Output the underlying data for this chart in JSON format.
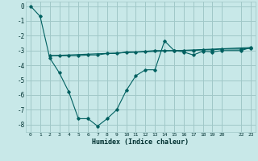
{
  "title": "",
  "xlabel": "Humidex (Indice chaleur)",
  "background_color": "#c8e8e8",
  "grid_color": "#a0c8c8",
  "line_color": "#006060",
  "xlim": [
    -0.5,
    23.5
  ],
  "ylim": [
    -8.5,
    0.3
  ],
  "x_ticks": [
    0,
    1,
    2,
    3,
    4,
    5,
    6,
    7,
    8,
    9,
    10,
    11,
    12,
    13,
    14,
    15,
    16,
    17,
    18,
    19,
    20,
    22,
    23
  ],
  "y_ticks": [
    0,
    -1,
    -2,
    -3,
    -4,
    -5,
    -6,
    -7,
    -8
  ],
  "line1_x": [
    0,
    1,
    2,
    3,
    4,
    5,
    6,
    7,
    8,
    9,
    10,
    11,
    12,
    13,
    14,
    15,
    16,
    17,
    18,
    19,
    20,
    22,
    23
  ],
  "line1_y": [
    0.0,
    -0.7,
    -3.5,
    -4.5,
    -5.8,
    -7.6,
    -7.6,
    -8.1,
    -7.6,
    -7.0,
    -5.7,
    -4.7,
    -4.3,
    -4.3,
    -2.35,
    -3.0,
    -3.1,
    -3.3,
    -3.05,
    -3.1,
    -3.0,
    -3.0,
    -2.8
  ],
  "line2_x": [
    2,
    3,
    4,
    5,
    6,
    7,
    8,
    9,
    10,
    11,
    12,
    13,
    14,
    15,
    16,
    17,
    18,
    19,
    20,
    22,
    23
  ],
  "line2_y": [
    -3.35,
    -3.35,
    -3.35,
    -3.35,
    -3.3,
    -3.3,
    -3.2,
    -3.2,
    -3.1,
    -3.1,
    -3.05,
    -3.0,
    -3.0,
    -3.0,
    -3.0,
    -3.0,
    -2.95,
    -2.95,
    -2.9,
    -2.9,
    -2.85
  ],
  "line3_x": [
    2,
    23
  ],
  "line3_y": [
    -3.35,
    -2.8
  ],
  "figsize": [
    3.2,
    2.0
  ],
  "dpi": 100
}
